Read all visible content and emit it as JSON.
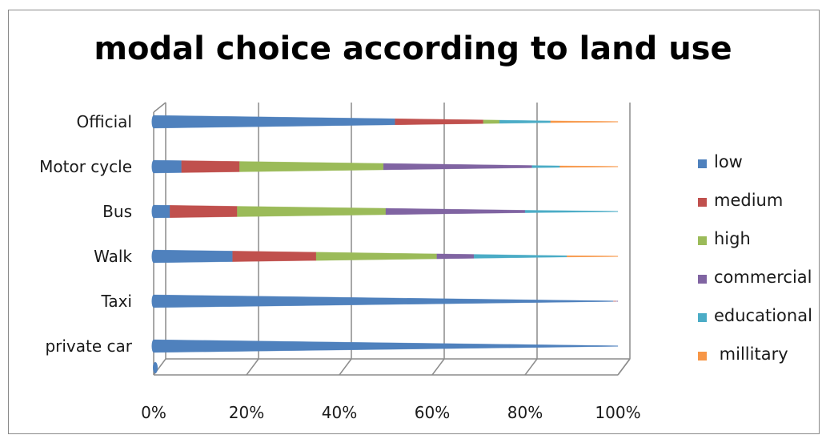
{
  "chart_data": {
    "type": "bar",
    "orientation": "horizontal",
    "stacked": "percent",
    "title": "modal choice according to land use",
    "categories": [
      "Official",
      "Motor cycle",
      "Bus",
      "Walk",
      "Taxi",
      "private car"
    ],
    "x_ticks": [
      "0%",
      "20%",
      "40%",
      "60%",
      "80%",
      "100%"
    ],
    "xlim": [
      0,
      100
    ],
    "legend_position": "right",
    "grid": true,
    "series": [
      {
        "name": "low",
        "color": "#4f81bd",
        "values": [
          52,
          6,
          3.5,
          17,
          99,
          100
        ]
      },
      {
        "name": "medium",
        "color": "#c0504d",
        "values": [
          19,
          12.5,
          14.5,
          18,
          0.5,
          0
        ]
      },
      {
        "name": "high",
        "color": "#9bbb59",
        "values": [
          3.5,
          31,
          32,
          26,
          0,
          0
        ]
      },
      {
        "name": "commercial",
        "color": "#8064a2",
        "values": [
          0,
          32,
          30,
          8,
          0.5,
          0
        ]
      },
      {
        "name": "educational",
        "color": "#4bacc6",
        "values": [
          11,
          6,
          20,
          20,
          0,
          0
        ]
      },
      {
        "name": "millitary",
        "color": "#f79646",
        "values": [
          14.5,
          12.5,
          0,
          11,
          0,
          0
        ]
      }
    ]
  }
}
